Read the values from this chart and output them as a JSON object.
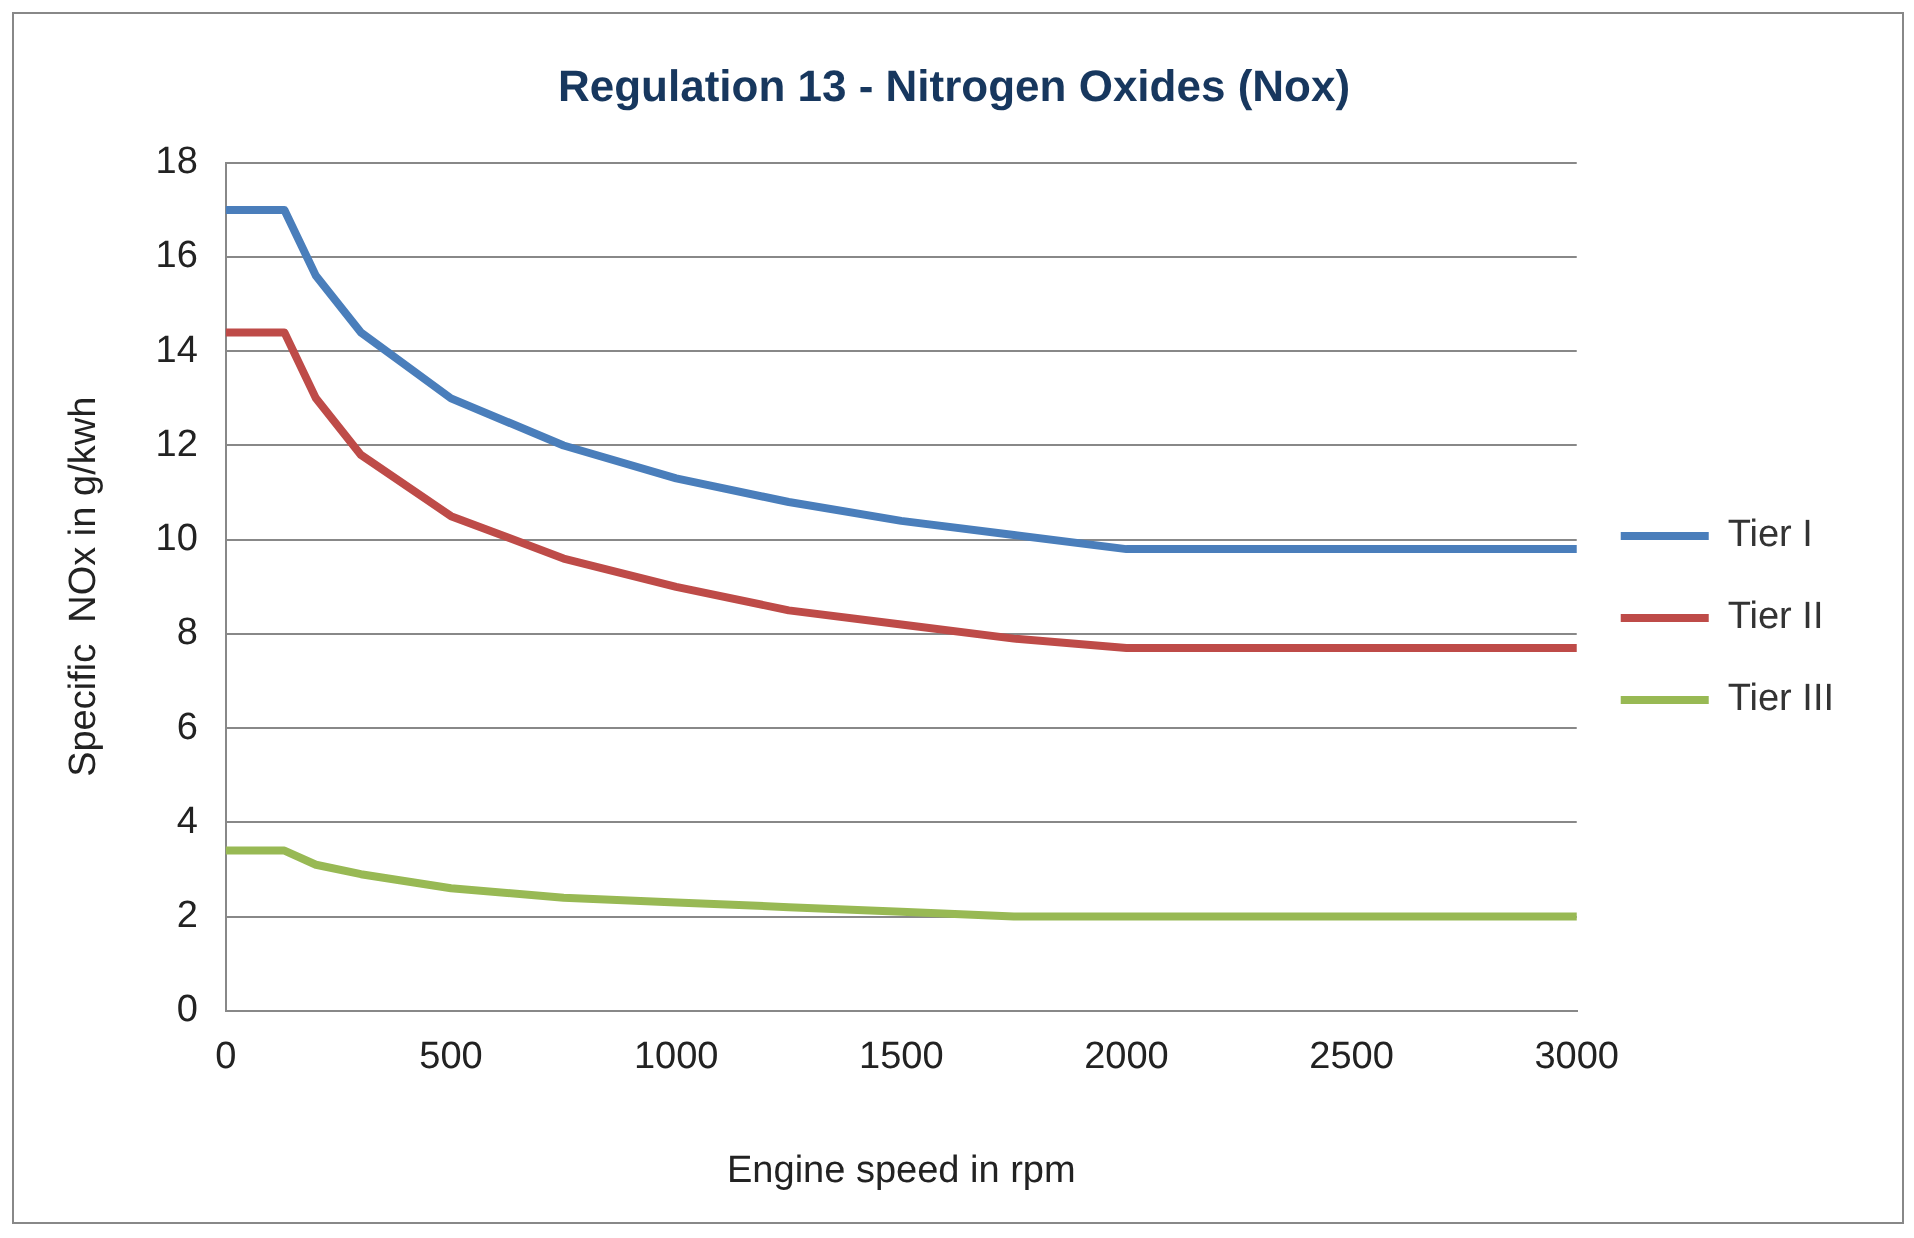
{
  "chart_data": {
    "type": "line",
    "title": "Regulation 13 - Nitrogen Oxides (Nox)",
    "xlabel": "Engine speed in rpm",
    "ylabel": "Specific  NOx in g/kwh",
    "x": [
      0,
      130,
      200,
      300,
      500,
      750,
      1000,
      1250,
      1500,
      1750,
      2000,
      3000
    ],
    "series": [
      {
        "name": "Tier I",
        "color": "#4a7ebb",
        "values": [
          17,
          17,
          15.6,
          14.4,
          13.0,
          12.0,
          11.3,
          10.8,
          10.4,
          10.1,
          9.8,
          9.8
        ]
      },
      {
        "name": "Tier II",
        "color": "#be4b48",
        "values": [
          14.4,
          14.4,
          13.0,
          11.8,
          10.5,
          9.6,
          9.0,
          8.5,
          8.2,
          7.9,
          7.7,
          7.7
        ]
      },
      {
        "name": "Tier III",
        "color": "#98b954",
        "values": [
          3.4,
          3.4,
          3.1,
          2.9,
          2.6,
          2.4,
          2.3,
          2.2,
          2.1,
          2.0,
          2.0,
          2.0
        ]
      }
    ],
    "xlim": [
      0,
      3000
    ],
    "xticks": [
      0,
      500,
      1000,
      1500,
      2000,
      2500,
      3000
    ],
    "ylim": [
      0,
      18
    ],
    "yticks": [
      0,
      2,
      4,
      6,
      8,
      10,
      12,
      14,
      16,
      18
    ],
    "grid": "y",
    "legend": "right",
    "marker": "none",
    "line_style": "solid"
  }
}
